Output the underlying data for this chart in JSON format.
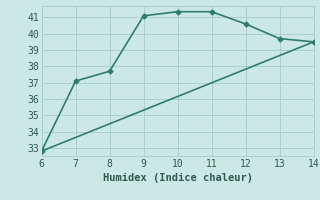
{
  "xlabel": "Humidex (Indice chaleur)",
  "line1_x": [
    6,
    7,
    8,
    9,
    10,
    11,
    12,
    13,
    14
  ],
  "line1_y": [
    32.8,
    37.1,
    37.7,
    41.1,
    41.35,
    41.35,
    40.6,
    39.7,
    39.5
  ],
  "line2_x": [
    6,
    14
  ],
  "line2_y": [
    32.8,
    39.5
  ],
  "line_color": "#2e7d6e",
  "bg_color": "#cce8e4",
  "grid_color": "#aad0cc",
  "xlim": [
    6,
    14
  ],
  "ylim": [
    32.5,
    41.7
  ],
  "xticks": [
    6,
    7,
    8,
    9,
    10,
    11,
    12,
    13,
    14
  ],
  "yticks": [
    33,
    34,
    35,
    36,
    37,
    38,
    39,
    40,
    41
  ],
  "font_color": "#2e5a50",
  "marker": "D",
  "markersize": 2.5,
  "linewidth": 1.2,
  "axis_fontsize": 7.5,
  "tick_fontsize": 7
}
